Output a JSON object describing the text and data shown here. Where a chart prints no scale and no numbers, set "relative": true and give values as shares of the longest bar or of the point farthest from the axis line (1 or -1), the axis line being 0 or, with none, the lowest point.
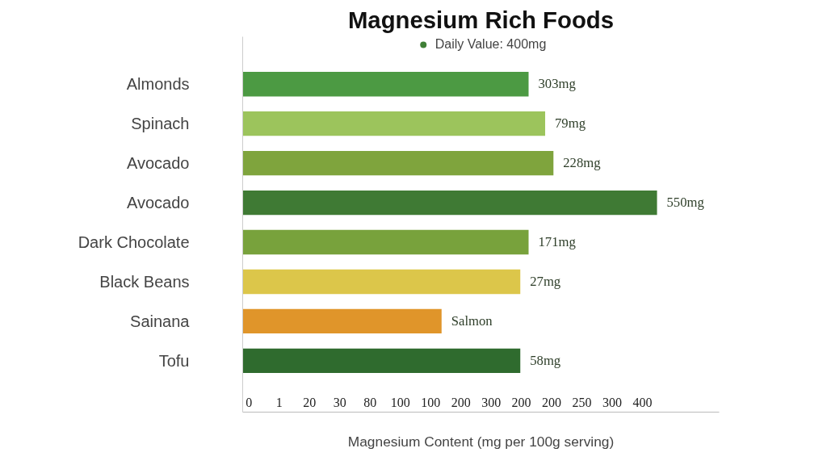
{
  "chart_data": {
    "type": "bar",
    "orientation": "horizontal",
    "relative": true,
    "title": "Magnesium Rich Foods",
    "xlabel": "Magnesium Content (mg per 100g serving)",
    "categories": [
      "Almonds",
      "Spinach",
      "Avocado",
      "Avocado",
      "Dark Chocolate",
      "Black Beans",
      "Sainana",
      "Tofu"
    ],
    "series": [
      {
        "name": "Daily Value: 400mg",
        "color": "#3f7f36",
        "values": [
          0.69,
          0.73,
          0.75,
          1,
          0.69,
          0.67,
          0.48,
          0.67
        ],
        "colors": [
          "#4c9a43",
          "#9cc45c",
          "#7fa43d",
          "#3f7a34",
          "#78a23c",
          "#dcc64a",
          "#e0952a",
          "#2f6b2e"
        ]
      }
    ],
    "annotations": [
      "303mg",
      "79mg",
      "228mg",
      "550mg",
      "171mg",
      "27mg",
      "Salmon",
      "58mg",
      "0",
      "1",
      "20",
      "30",
      "80",
      "100",
      "100",
      "200",
      "300",
      "200",
      "200",
      "250",
      "300",
      "400"
    ],
    "legend": "top"
  }
}
